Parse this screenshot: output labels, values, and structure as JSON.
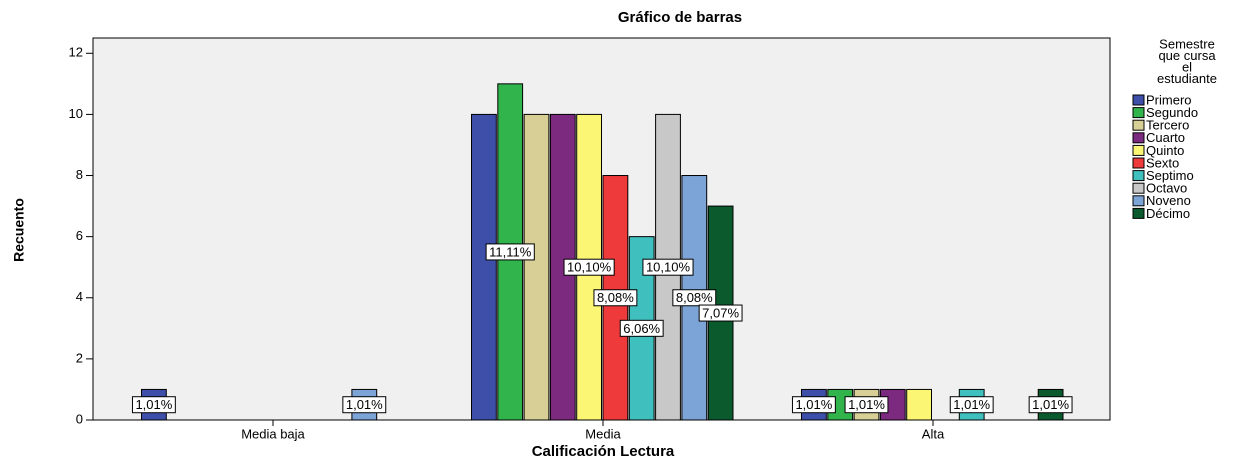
{
  "chart_data": {
    "type": "bar",
    "title": "Gráfico de barras",
    "x_label": "Calificación Lectura",
    "y_label": "Recuento",
    "legend_title": [
      "Semestre",
      "que cursa",
      "el",
      "estudiante"
    ],
    "legend_position": "right",
    "categories": [
      "Media baja",
      "Media",
      "Alta"
    ],
    "ylim": [
      0,
      12.5
    ],
    "yticks": [
      0,
      2,
      4,
      6,
      8,
      10,
      12
    ],
    "grid": false,
    "series": [
      {
        "name": "Primero",
        "color": "#3d4fa8",
        "values": [
          1,
          10,
          1
        ],
        "percent_labels": [
          "1,01%",
          null,
          "1,01%"
        ]
      },
      {
        "name": "Segundo",
        "color": "#30b44b",
        "values": [
          0,
          11,
          1
        ],
        "percent_labels": [
          null,
          "11,11%",
          null
        ]
      },
      {
        "name": "Tercero",
        "color": "#d8cf96",
        "values": [
          0,
          10,
          1
        ],
        "percent_labels": [
          null,
          null,
          "1,01%"
        ]
      },
      {
        "name": "Cuarto",
        "color": "#7b2a7f",
        "values": [
          0,
          10,
          1
        ],
        "percent_labels": [
          null,
          null,
          null
        ]
      },
      {
        "name": "Quinto",
        "color": "#fbf674",
        "values": [
          0,
          10,
          1
        ],
        "percent_labels": [
          null,
          "10,10%",
          null
        ]
      },
      {
        "name": "Sexto",
        "color": "#ee3a3a",
        "values": [
          0,
          8,
          0
        ],
        "percent_labels": [
          null,
          "8,08%",
          null
        ]
      },
      {
        "name": "Septimo",
        "color": "#40bfbf",
        "values": [
          0,
          6,
          1
        ],
        "percent_labels": [
          null,
          "6,06%",
          "1,01%"
        ]
      },
      {
        "name": "Octavo",
        "color": "#c8c8c8",
        "values": [
          0,
          10,
          0
        ],
        "percent_labels": [
          null,
          "10,10%",
          null
        ]
      },
      {
        "name": "Noveno",
        "color": "#7da4d6",
        "values": [
          1,
          8,
          0
        ],
        "percent_labels": [
          "1,01%",
          "8,08%",
          null
        ]
      },
      {
        "name": "Décimo",
        "color": "#0b5a2e",
        "values": [
          0,
          7,
          1
        ],
        "percent_labels": [
          null,
          "7,07%",
          "1,01%"
        ]
      }
    ]
  }
}
